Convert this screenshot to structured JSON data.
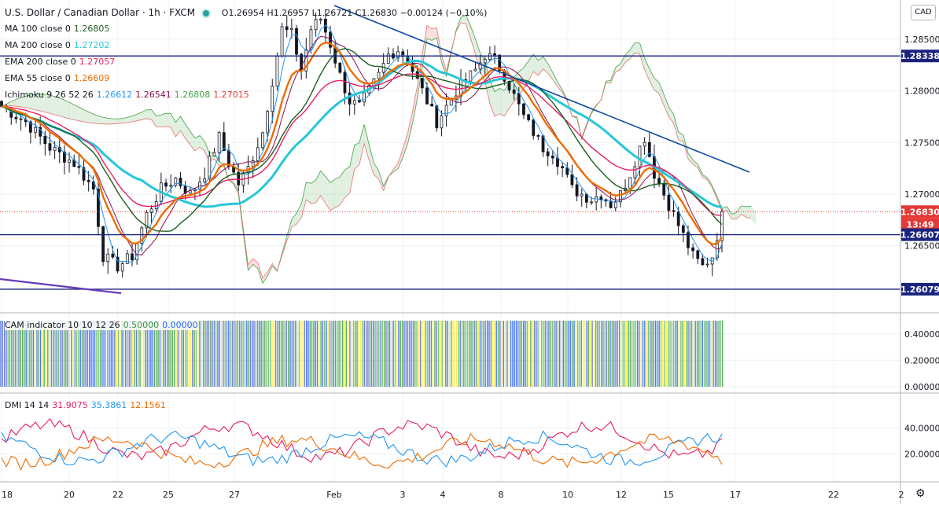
{
  "header": {
    "symbol": "U.S. Dollar / Canadian Dollar · 1h · FXCM",
    "ohlc": "O1.26954 H1.26957 L1.26721 C1.26830 −0.00124 (−0.10%)",
    "currency": "CAD"
  },
  "legend": [
    {
      "label": "MA 100 close 0",
      "value": "1.26805",
      "color": "#1b5e20"
    },
    {
      "label": "MA 200 close 0",
      "value": "1.27202",
      "color": "#26c6da"
    },
    {
      "label": "EMA 200 close 0",
      "value": "1.27057",
      "color": "#e91e63"
    },
    {
      "label": "EMA 55 close 0",
      "value": "1.26609",
      "color": "#ef6c00"
    },
    {
      "label": "Ichimoku 9 26 52 26",
      "values": [
        "1.26612",
        "1.26541",
        "1.26808",
        "1.27015"
      ],
      "colors": [
        "#2196f3",
        "#880e4f",
        "#43a047",
        "#e53935"
      ]
    }
  ],
  "price_axis": {
    "ticks": [
      "1.28500",
      "1.28000",
      "1.27500",
      "1.27000",
      "1.26500"
    ],
    "badges": [
      {
        "text": "1.28338",
        "color": "#1a237e"
      },
      {
        "text": "1.26830",
        "color": "#e53935"
      },
      {
        "text": "13:49",
        "color": "#e53935"
      },
      {
        "text": "1.26607",
        "color": "#1a237e"
      },
      {
        "text": "1.26079",
        "color": "#1a237e"
      }
    ]
  },
  "time_axis": [
    "18",
    "20",
    "22",
    "25",
    "27",
    "Feb",
    "3",
    "4",
    "8",
    "10",
    "12",
    "15",
    "17",
    "22",
    "2"
  ],
  "cam": {
    "label": "CAM indicator 10 10 12 26",
    "v1": "0.50000",
    "v2": "0.00000",
    "ticks": [
      "0.40000",
      "0.20000",
      "0.00000"
    ]
  },
  "dmi": {
    "label": "DMI 14 14",
    "v1": "31.9075",
    "v2": "35.3861",
    "v3": "12.1561",
    "ticks": [
      "40.0000",
      "20.0000"
    ]
  },
  "chart_data": {
    "type": "candlestick",
    "title": "U.S. Dollar / Canadian Dollar · 1h · FXCM",
    "y_range": [
      1.2585,
      1.2888
    ],
    "horizontal_levels": [
      1.28338,
      1.26607,
      1.26079
    ],
    "last_price": 1.2683,
    "key_closes": [
      [
        0,
        1.2785
      ],
      [
        5,
        1.277
      ],
      [
        10,
        1.2745
      ],
      [
        15,
        1.273
      ],
      [
        19,
        1.2705
      ],
      [
        21,
        1.264
      ],
      [
        24,
        1.263
      ],
      [
        27,
        1.264
      ],
      [
        30,
        1.268
      ],
      [
        33,
        1.2705
      ],
      [
        36,
        1.2715
      ],
      [
        39,
        1.27
      ],
      [
        42,
        1.272
      ],
      [
        45,
        1.2755
      ],
      [
        47,
        1.273
      ],
      [
        49,
        1.271
      ],
      [
        51,
        1.2725
      ],
      [
        54,
        1.276
      ],
      [
        56,
        1.281
      ],
      [
        58,
        1.286
      ],
      [
        60,
        1.2855
      ],
      [
        62,
        1.282
      ],
      [
        64,
        1.286
      ],
      [
        66,
        1.287
      ],
      [
        68,
        1.2845
      ],
      [
        70,
        1.2815
      ],
      [
        72,
        1.279
      ],
      [
        74,
        1.2785
      ],
      [
        76,
        1.28
      ],
      [
        78,
        1.2815
      ],
      [
        80,
        1.2835
      ],
      [
        82,
        1.284
      ],
      [
        84,
        1.283
      ],
      [
        86,
        1.281
      ],
      [
        88,
        1.279
      ],
      [
        90,
        1.277
      ],
      [
        92,
        1.2785
      ],
      [
        94,
        1.28
      ],
      [
        96,
        1.281
      ],
      [
        98,
        1.282
      ],
      [
        100,
        1.2835
      ],
      [
        102,
        1.283
      ],
      [
        104,
        1.2815
      ],
      [
        106,
        1.2795
      ],
      [
        108,
        1.2775
      ],
      [
        110,
        1.276
      ],
      [
        112,
        1.2745
      ],
      [
        114,
        1.274
      ],
      [
        116,
        1.2725
      ],
      [
        118,
        1.2705
      ],
      [
        120,
        1.27
      ],
      [
        122,
        1.2695
      ],
      [
        124,
        1.27
      ],
      [
        126,
        1.269
      ],
      [
        128,
        1.27
      ],
      [
        130,
        1.272
      ],
      [
        132,
        1.2745
      ],
      [
        133,
        1.2755
      ],
      [
        135,
        1.272
      ],
      [
        137,
        1.27
      ],
      [
        139,
        1.268
      ],
      [
        141,
        1.266
      ],
      [
        143,
        1.264
      ],
      [
        145,
        1.263
      ],
      [
        147,
        1.264
      ],
      [
        148,
        1.266
      ],
      [
        149,
        1.2683
      ]
    ],
    "ma_series": [
      {
        "name": "MA 100 close 0",
        "color": "#1b5e20",
        "last": 1.26805
      },
      {
        "name": "MA 200 close 0",
        "color": "#26c6da",
        "last": 1.27202
      },
      {
        "name": "EMA 200 close 0",
        "color": "#e91e63",
        "last": 1.27057
      },
      {
        "name": "EMA 55 close 0",
        "color": "#ef6c00",
        "last": 1.26609
      }
    ]
  }
}
